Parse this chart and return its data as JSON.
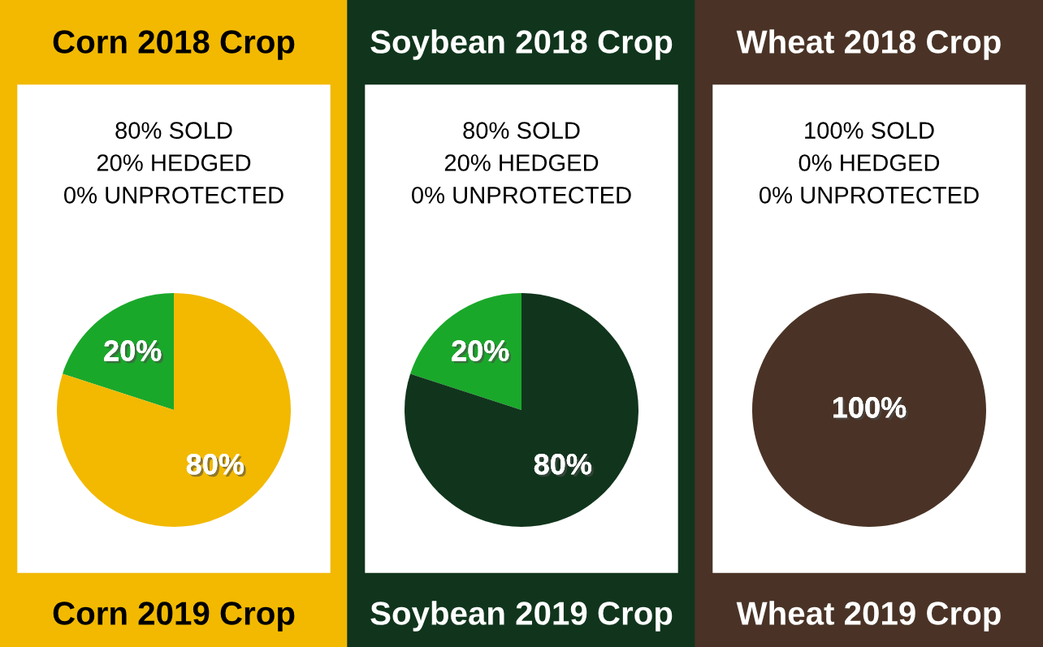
{
  "chart_data": [
    {
      "type": "pie",
      "title": "Corn 2018 Crop",
      "subtitle": "80% SOLD\n20% HEDGED\n0% UNPROTECTED",
      "categories": [
        null,
        null
      ],
      "values": [
        20,
        80
      ],
      "value_labels": [
        "20%",
        "80%"
      ],
      "colors": [
        "#1aa82a",
        "#f2b900"
      ],
      "annotations": [
        "Corn 2019 Crop"
      ]
    },
    {
      "type": "pie",
      "title": "Soybean 2018 Crop",
      "subtitle": "80% SOLD\n20% HEDGED\n0% UNPROTECTED",
      "categories": [
        null,
        null
      ],
      "values": [
        20,
        80
      ],
      "value_labels": [
        "20%",
        "80%"
      ],
      "colors": [
        "#1aa82a",
        "#10351c"
      ],
      "annotations": [
        "Soybean 2019 Crop"
      ]
    },
    {
      "type": "pie",
      "title": "Wheat 2018 Crop",
      "subtitle": "100% SOLD\n0% HEDGED\n0% UNPROTECTED",
      "categories": [
        null
      ],
      "values": [
        100
      ],
      "value_labels": [
        "100%"
      ],
      "colors": [
        "#4a3326"
      ],
      "annotations": [
        "Wheat 2019 Crop"
      ]
    }
  ]
}
